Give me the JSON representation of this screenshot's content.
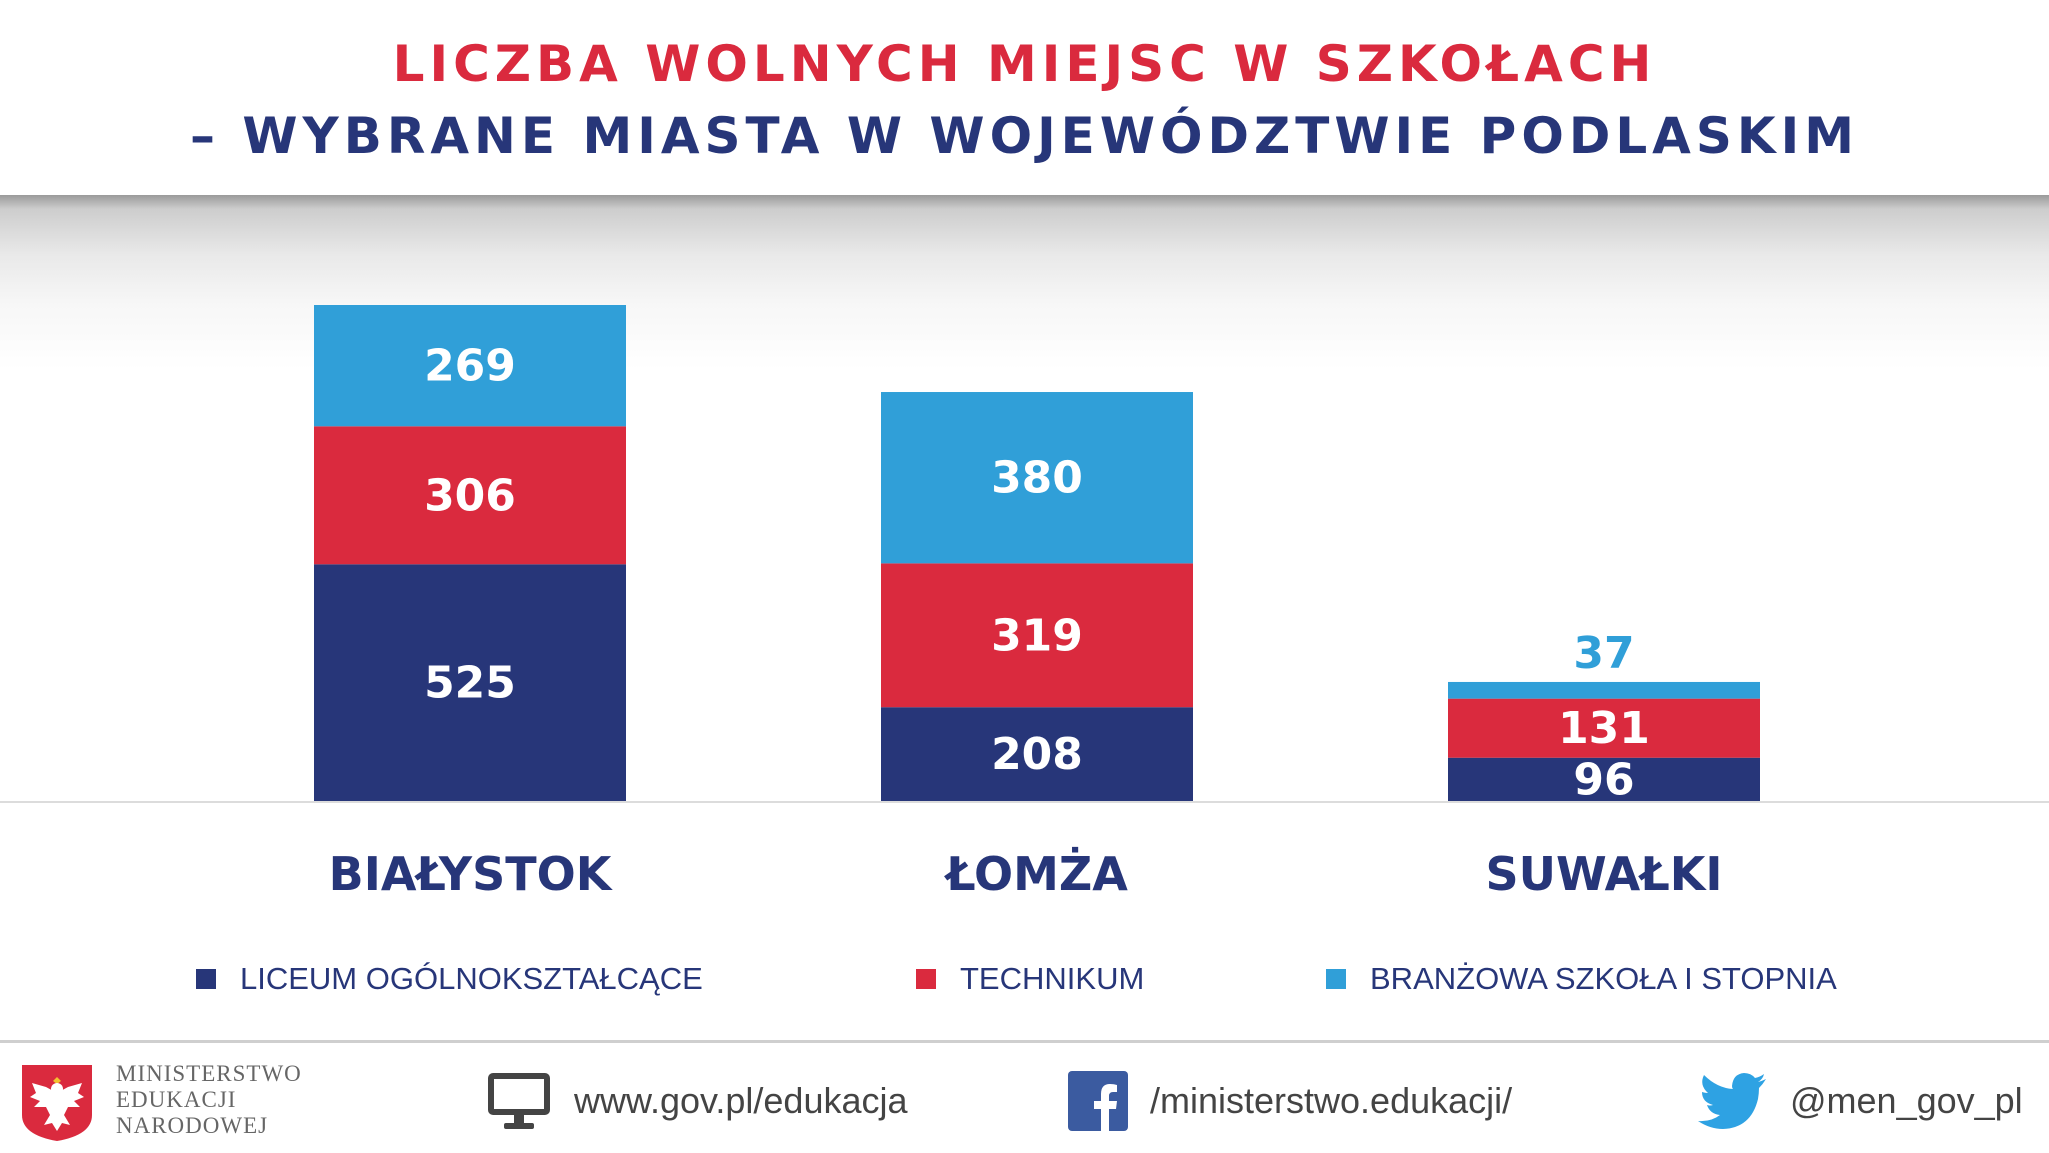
{
  "chart_data": {
    "type": "bar",
    "stacked": true,
    "title": "LICZBA WOLNYCH MIEJSC W SZKOŁACH",
    "subtitle": "– WYBRANE MIASTA W WOJEWÓDZTWIE PODLASKIM",
    "categories": [
      "BIAŁYSTOK",
      "ŁOMŻA",
      "SUWAŁKI"
    ],
    "series": [
      {
        "name": "LICEUM OGÓLNOKSZTAŁCĄCE",
        "values": [
          525,
          208,
          96
        ],
        "color": "#273679"
      },
      {
        "name": "TECHNIKUM",
        "values": [
          306,
          319,
          131
        ],
        "color": "#da2a3e"
      },
      {
        "name": "BRANŻOWA SZKOŁA I STOPNIA",
        "values": [
          269,
          380,
          37
        ],
        "color": "#309fd8"
      }
    ],
    "ylim": [
      0,
      1100
    ],
    "grid": false,
    "legend": "bottom"
  },
  "footer": {
    "ministry_lines": [
      "MINISTERSTWO",
      "EDUKACJI",
      "NARODOWEJ"
    ],
    "website": "www.gov.pl/edukacja",
    "facebook": "/ministerstwo.edukacji/",
    "twitter": "@men_gov_pl",
    "icons": [
      "polish-eagle-emblem",
      "monitor-icon",
      "facebook-icon",
      "twitter-icon"
    ]
  }
}
